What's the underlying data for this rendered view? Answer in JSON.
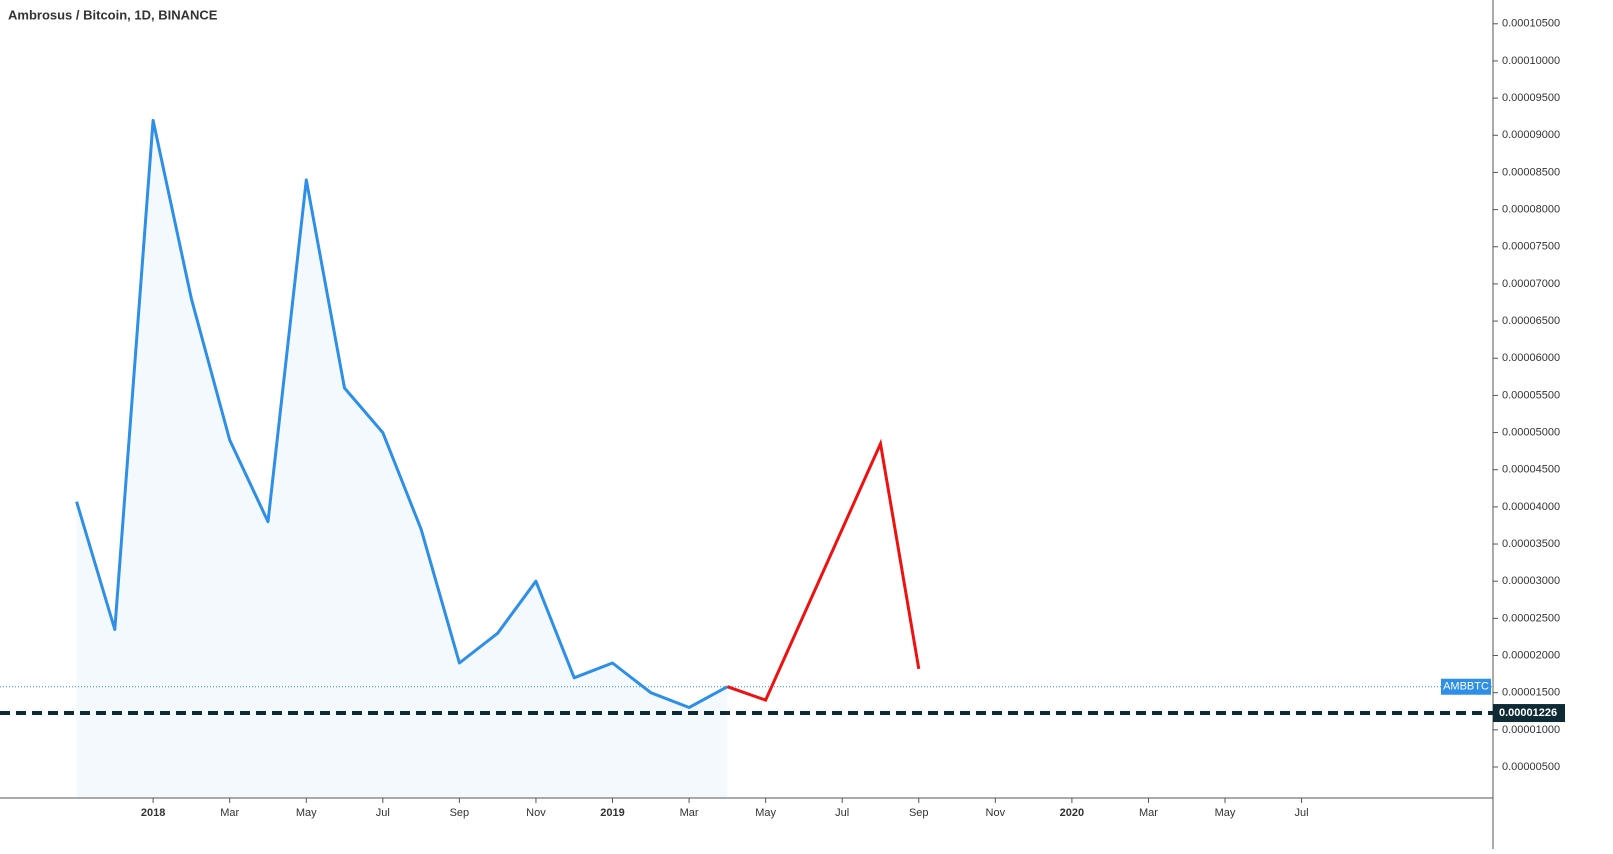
{
  "chart_data": {
    "type": "line",
    "title": "Ambrosus / Bitcoin, 1D, BINANCE",
    "xlim": [
      "2017-09",
      "2020-12"
    ],
    "xticks": [
      {
        "value": "2018-01",
        "label": "2018"
      },
      {
        "value": "2018-03",
        "label": "Mar"
      },
      {
        "value": "2018-05",
        "label": "May"
      },
      {
        "value": "2018-07",
        "label": "Jul"
      },
      {
        "value": "2018-09",
        "label": "Sep"
      },
      {
        "value": "2018-11",
        "label": "Nov"
      },
      {
        "value": "2019-01",
        "label": "2019"
      },
      {
        "value": "2019-03",
        "label": "Mar"
      },
      {
        "value": "2019-05",
        "label": "May"
      },
      {
        "value": "2019-07",
        "label": "Jul"
      },
      {
        "value": "2019-09",
        "label": "Sep"
      },
      {
        "value": "2019-11",
        "label": "Nov"
      },
      {
        "value": "2020-01",
        "label": "2020"
      },
      {
        "value": "2020-03",
        "label": "Mar"
      },
      {
        "value": "2020-05",
        "label": "May"
      },
      {
        "value": "2020-07",
        "label": "Jul"
      }
    ],
    "ylim": [
      8.3e-07,
      0.0001082
    ],
    "yticks": [
      {
        "value": 5e-06,
        "label": "0.00000500"
      },
      {
        "value": 1e-05,
        "label": "0.00001000"
      },
      {
        "value": 1.5e-05,
        "label": "0.00001500"
      },
      {
        "value": 2e-05,
        "label": "0.00002000"
      },
      {
        "value": 2.5e-05,
        "label": "0.00002500"
      },
      {
        "value": 3e-05,
        "label": "0.00003000"
      },
      {
        "value": 3.5e-05,
        "label": "0.00003500"
      },
      {
        "value": 4e-05,
        "label": "0.00004000"
      },
      {
        "value": 4.5e-05,
        "label": "0.00004500"
      },
      {
        "value": 5e-05,
        "label": "0.00005000"
      },
      {
        "value": 5.5e-05,
        "label": "0.00005500"
      },
      {
        "value": 6e-05,
        "label": "0.00006000"
      },
      {
        "value": 6.5e-05,
        "label": "0.00006500"
      },
      {
        "value": 7e-05,
        "label": "0.00007000"
      },
      {
        "value": 7.5e-05,
        "label": "0.00007500"
      },
      {
        "value": 8e-05,
        "label": "0.00008000"
      },
      {
        "value": 8.5e-05,
        "label": "0.00008500"
      },
      {
        "value": 9e-05,
        "label": "0.00009000"
      },
      {
        "value": 9.5e-05,
        "label": "0.00009500"
      },
      {
        "value": 0.0001,
        "label": "0.00010000"
      },
      {
        "value": 0.000105,
        "label": "0.00010500"
      }
    ],
    "series": [
      {
        "name": "AMBBTC",
        "color": "#2d8fe8",
        "x": [
          "2017-11",
          "2017-12",
          "2018-01",
          "2018-02",
          "2018-03",
          "2018-04",
          "2018-05",
          "2018-06",
          "2018-07",
          "2018-08",
          "2018-09",
          "2018-10",
          "2018-11",
          "2018-12",
          "2019-01",
          "2019-02",
          "2019-03",
          "2019-04"
        ],
        "values": [
          4.07e-05,
          2.35e-05,
          9.2e-05,
          6.8e-05,
          4.9e-05,
          3.8e-05,
          8.4e-05,
          5.6e-05,
          5e-05,
          3.7e-05,
          1.9e-05,
          2.3e-05,
          3e-05,
          1.7e-05,
          1.9e-05,
          1.5e-05,
          1.3e-05,
          1.58e-05
        ]
      }
    ],
    "drawing": {
      "color": "#f01010",
      "x": [
        "2019-04",
        "2019-05",
        "2019-08",
        "2019-09"
      ],
      "values": [
        1.58e-05,
        1.4e-05,
        4.85e-05,
        1.82e-05
      ]
    },
    "price_line": {
      "value": 1.226e-05,
      "label": "0.00001226",
      "color": "#0d2a35"
    }
  }
}
